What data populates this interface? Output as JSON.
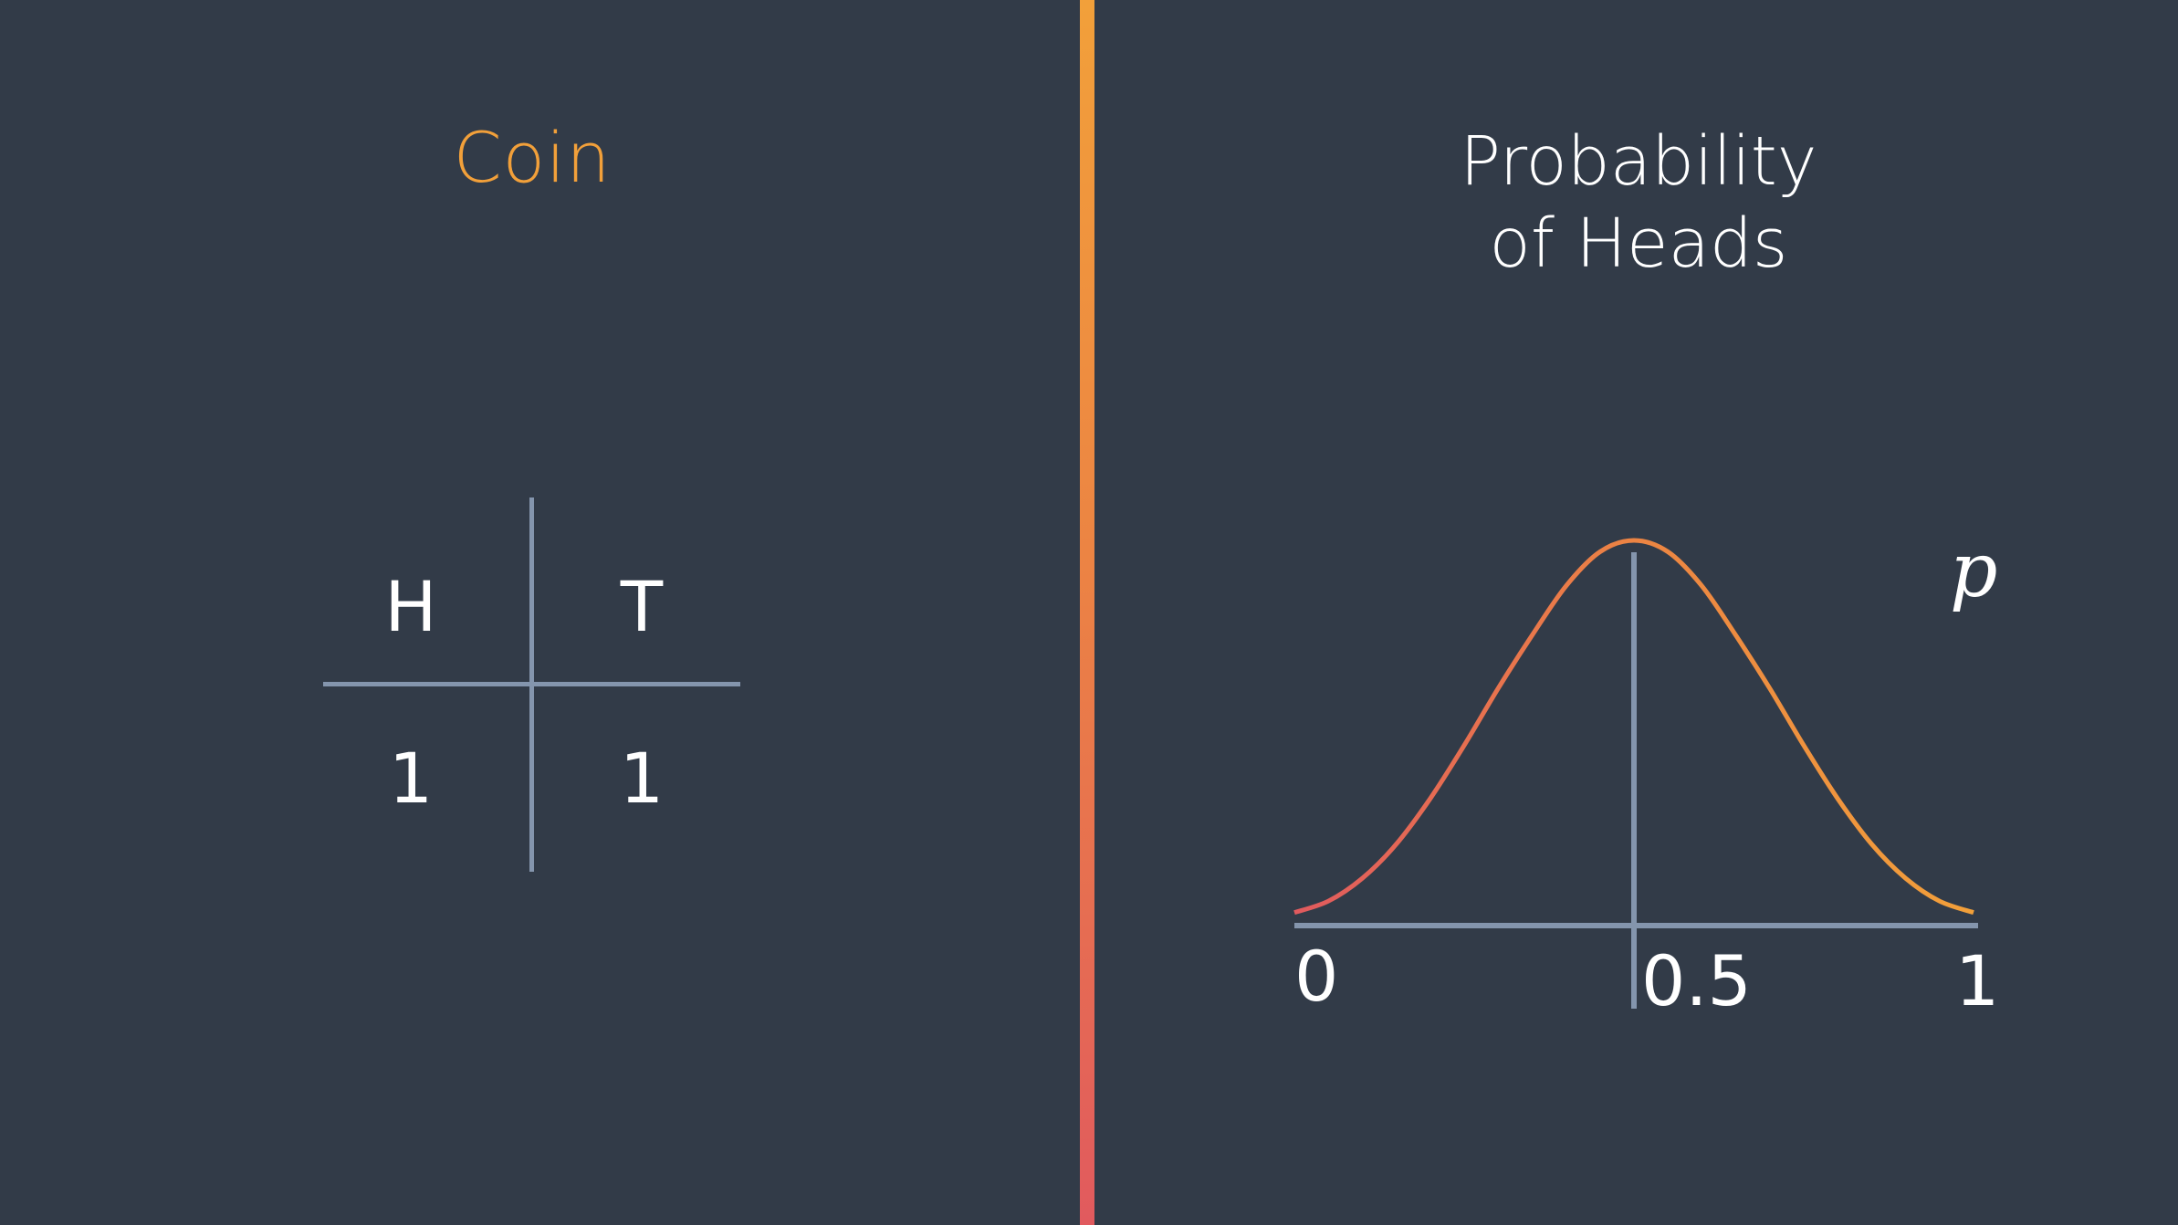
{
  "coin": {
    "title": "Coin",
    "headers": [
      "H",
      "T"
    ],
    "values": [
      "1",
      "1"
    ]
  },
  "probability": {
    "title_line1": "Probability",
    "title_line2": "of Heads",
    "variable": "p"
  },
  "chart_data": {
    "type": "line",
    "title": "Probability of Heads",
    "xlabel": "p",
    "ylabel": "",
    "xlim": [
      0,
      1
    ],
    "x_ticks": [
      "0",
      "0.5",
      "1"
    ],
    "marker_x": 0.5,
    "series": [
      {
        "x": [
          0.0,
          0.05,
          0.1,
          0.15,
          0.2,
          0.25,
          0.3,
          0.35,
          0.4,
          0.45,
          0.5,
          0.55,
          0.6,
          0.65,
          0.7,
          0.75,
          0.8,
          0.85,
          0.9,
          0.95,
          1.0
        ],
        "values": [
          0.02,
          0.05,
          0.11,
          0.2,
          0.32,
          0.46,
          0.61,
          0.75,
          0.88,
          0.97,
          1.0,
          0.97,
          0.88,
          0.75,
          0.61,
          0.46,
          0.32,
          0.2,
          0.11,
          0.05,
          0.02
        ]
      }
    ]
  },
  "colors": {
    "background": "#323b48",
    "accent": "#f2a03a",
    "accent_end": "#e15a5e",
    "axis": "#8495ad",
    "text": "#ffffff"
  }
}
